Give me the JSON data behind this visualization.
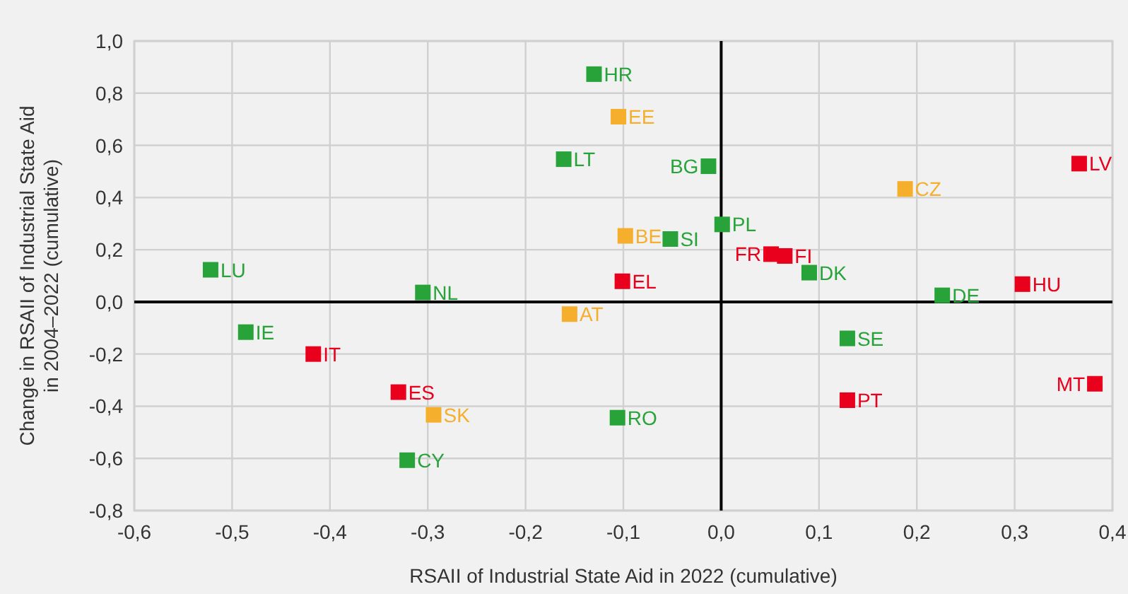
{
  "chart_data": {
    "type": "scatter",
    "xlabel": "RSAII of Industrial State Aid in 2022 (cumulative)",
    "ylabel": "Change in RSAII of Industrial State Aid in 2004–2022 (cumulative)",
    "xlim": [
      -0.6,
      0.4
    ],
    "ylim": [
      -0.8,
      1.0
    ],
    "xticks": [
      {
        "value": -0.6,
        "label": "-0,6"
      },
      {
        "value": -0.5,
        "label": "-0,5"
      },
      {
        "value": -0.4,
        "label": "-0,4"
      },
      {
        "value": -0.3,
        "label": "-0,3"
      },
      {
        "value": -0.2,
        "label": "-0,2"
      },
      {
        "value": -0.1,
        "label": "-0,1"
      },
      {
        "value": 0,
        "label": "0,0"
      },
      {
        "value": 0.1,
        "label": "0,1"
      },
      {
        "value": 0.2,
        "label": "0,2"
      },
      {
        "value": 0.3,
        "label": "0,3"
      },
      {
        "value": 0.4,
        "label": "0,4"
      }
    ],
    "yticks": [
      {
        "value": -0.8,
        "label": "-0,8"
      },
      {
        "value": -0.6,
        "label": "-0,6"
      },
      {
        "value": -0.4,
        "label": "-0,4"
      },
      {
        "value": -0.2,
        "label": "-0,2"
      },
      {
        "value": 0,
        "label": "0,0"
      },
      {
        "value": 0.2,
        "label": "0,2"
      },
      {
        "value": 0.4,
        "label": "0,4"
      },
      {
        "value": 0.6,
        "label": "0,6"
      },
      {
        "value": 0.8,
        "label": "0,8"
      },
      {
        "value": 1.0,
        "label": "1,0"
      }
    ],
    "grid": true,
    "marker": "square",
    "series": [
      {
        "color": "#27a33a",
        "x": [
          -0.13,
          -0.161,
          -0.013,
          -0.052,
          0.001,
          0.09,
          0.226,
          -0.522,
          -0.305,
          -0.486,
          -0.321,
          -0.106,
          0.129
        ],
        "values": [
          0.873,
          0.547,
          0.52,
          0.241,
          0.297,
          0.112,
          0.025,
          0.123,
          0.036,
          -0.116,
          -0.607,
          -0.444,
          -0.14
        ]
      },
      {
        "color": "#f6ae2d",
        "x": [
          -0.105,
          -0.098,
          0.188,
          -0.155,
          -0.294
        ],
        "values": [
          0.71,
          0.253,
          0.433,
          -0.047,
          -0.433
        ]
      },
      {
        "color": "#e8001c",
        "x": [
          0.366,
          0.051,
          0.065,
          -0.101,
          0.308,
          -0.417,
          -0.33,
          0.129,
          0.382
        ],
        "values": [
          0.53,
          0.183,
          0.176,
          0.079,
          0.068,
          -0.2,
          -0.346,
          -0.377,
          -0.314
        ]
      }
    ],
    "annotations": [
      {
        "text": "HR",
        "x": -0.13,
        "y": 0.873
      },
      {
        "text": "LT",
        "x": -0.161,
        "y": 0.547
      },
      {
        "text": "BG",
        "x": -0.013,
        "y": 0.52
      },
      {
        "text": "SI",
        "x": -0.052,
        "y": 0.241
      },
      {
        "text": "PL",
        "x": 0.001,
        "y": 0.297
      },
      {
        "text": "DK",
        "x": 0.09,
        "y": 0.112
      },
      {
        "text": "DE",
        "x": 0.226,
        "y": 0.025
      },
      {
        "text": "LU",
        "x": -0.522,
        "y": 0.123
      },
      {
        "text": "NL",
        "x": -0.305,
        "y": 0.036
      },
      {
        "text": "IE",
        "x": -0.486,
        "y": -0.116
      },
      {
        "text": "CY",
        "x": -0.321,
        "y": -0.607
      },
      {
        "text": "RO",
        "x": -0.106,
        "y": -0.444
      },
      {
        "text": "SE",
        "x": 0.129,
        "y": -0.14
      },
      {
        "text": "EE",
        "x": -0.105,
        "y": 0.71
      },
      {
        "text": "BE",
        "x": -0.098,
        "y": 0.253
      },
      {
        "text": "CZ",
        "x": 0.188,
        "y": 0.433
      },
      {
        "text": "AT",
        "x": -0.155,
        "y": -0.047
      },
      {
        "text": "SK",
        "x": -0.294,
        "y": -0.433
      },
      {
        "text": "LV",
        "x": 0.366,
        "y": 0.53
      },
      {
        "text": "FR",
        "x": 0.051,
        "y": 0.183
      },
      {
        "text": "FI",
        "x": 0.065,
        "y": 0.176
      },
      {
        "text": "EL",
        "x": -0.101,
        "y": 0.079
      },
      {
        "text": "HU",
        "x": 0.308,
        "y": 0.068
      },
      {
        "text": "IT",
        "x": -0.417,
        "y": -0.2
      },
      {
        "text": "ES",
        "x": -0.33,
        "y": -0.346
      },
      {
        "text": "PT",
        "x": 0.129,
        "y": -0.377
      },
      {
        "text": "MT",
        "x": 0.382,
        "y": -0.314
      }
    ]
  }
}
